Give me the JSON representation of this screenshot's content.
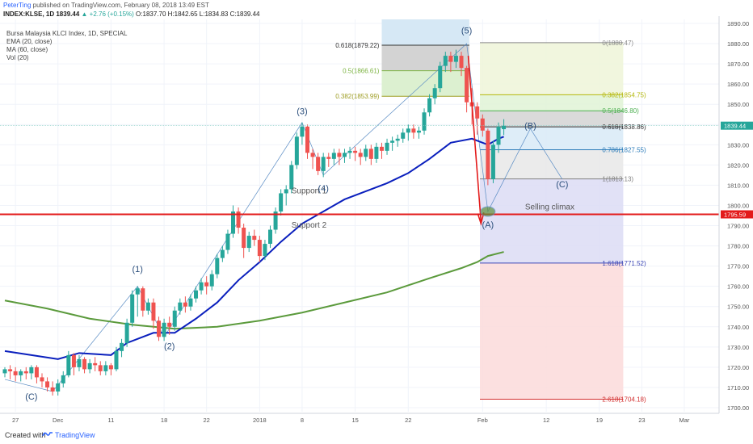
{
  "header": {
    "author": "PeterTing",
    "published": "published on TradingView.com, February 08, 2018 13:49 EST",
    "symbol": "INDEX:KLSE, 1D",
    "last": "1839.44",
    "change": "▲ +2.76 (+0.15%)",
    "ohlc": "O:1837.70 H:1842.65 L:1834.83 C:1839.44"
  },
  "indicators": [
    "Bursa Malaysia KLCI Index, 1D, SPECIAL",
    "EMA (20, close)",
    "MA (60, close)",
    "Vol (20)"
  ],
  "footer": {
    "created_with": "Created with",
    "brand": "TradingView"
  },
  "colors": {
    "up": "#26a69a",
    "down": "#ef5350",
    "ema": "#0a1fbd",
    "ma": "#5b9a3c",
    "support": "#e31b1b",
    "arrow": "#e31b1b",
    "wave": "#4a7bb7"
  },
  "chart_data": {
    "type": "candlestick",
    "symbol": "INDEX:KLSE",
    "timeframe": "1D",
    "ylim": [
      1698,
      1892
    ],
    "yticks": [
      1700,
      1710,
      1720,
      1730,
      1740,
      1750,
      1760,
      1770,
      1780,
      1790,
      1800,
      1810,
      1820,
      1830,
      1840,
      1850,
      1860,
      1870,
      1880,
      1890
    ],
    "xticks": [
      {
        "i": 2,
        "label": "27"
      },
      {
        "i": 10,
        "label": "Dec"
      },
      {
        "i": 20,
        "label": "11"
      },
      {
        "i": 30,
        "label": "18"
      },
      {
        "i": 38,
        "label": "22"
      },
      {
        "i": 48,
        "label": "2018"
      },
      {
        "i": 56,
        "label": "8"
      },
      {
        "i": 66,
        "label": "15"
      },
      {
        "i": 76,
        "label": "22"
      },
      {
        "i": 90,
        "label": "Feb"
      },
      {
        "i": 102,
        "label": "12"
      },
      {
        "i": 112,
        "label": "19"
      },
      {
        "i": 120,
        "label": "23"
      },
      {
        "i": 128,
        "label": "Mar"
      }
    ],
    "candles": [
      [
        0,
        1717,
        1719,
        1715,
        1720
      ],
      [
        1,
        1719,
        1718,
        1714,
        1721
      ],
      [
        2,
        1718,
        1716,
        1713,
        1720
      ],
      [
        3,
        1716,
        1718,
        1713,
        1719
      ],
      [
        4,
        1718,
        1717,
        1714,
        1720
      ],
      [
        5,
        1717,
        1720,
        1714,
        1721
      ],
      [
        6,
        1720,
        1715,
        1712,
        1721
      ],
      [
        7,
        1715,
        1713,
        1710,
        1717
      ],
      [
        8,
        1713,
        1710,
        1708,
        1715
      ],
      [
        9,
        1710,
        1708,
        1706,
        1713
      ],
      [
        10,
        1708,
        1712,
        1706,
        1714
      ],
      [
        11,
        1712,
        1716,
        1710,
        1718
      ],
      [
        12,
        1716,
        1726,
        1715,
        1728
      ],
      [
        13,
        1726,
        1720,
        1716,
        1727
      ],
      [
        14,
        1720,
        1724,
        1718,
        1726
      ],
      [
        15,
        1724,
        1719,
        1717,
        1725
      ],
      [
        16,
        1719,
        1722,
        1717,
        1724
      ],
      [
        17,
        1722,
        1721,
        1718,
        1725
      ],
      [
        18,
        1721,
        1718,
        1716,
        1723
      ],
      [
        19,
        1718,
        1721,
        1716,
        1723
      ],
      [
        20,
        1721,
        1719,
        1716,
        1722
      ],
      [
        21,
        1719,
        1728,
        1718,
        1730
      ],
      [
        22,
        1728,
        1732,
        1725,
        1734
      ],
      [
        23,
        1732,
        1742,
        1730,
        1744
      ],
      [
        24,
        1742,
        1756,
        1740,
        1758
      ],
      [
        25,
        1756,
        1759,
        1745,
        1760
      ],
      [
        26,
        1759,
        1748,
        1745,
        1760
      ],
      [
        27,
        1748,
        1752,
        1746,
        1754
      ],
      [
        28,
        1752,
        1743,
        1739,
        1754
      ],
      [
        29,
        1743,
        1735,
        1733,
        1745
      ],
      [
        30,
        1735,
        1742,
        1733,
        1744
      ],
      [
        31,
        1742,
        1740,
        1736,
        1745
      ],
      [
        32,
        1740,
        1748,
        1738,
        1750
      ],
      [
        33,
        1748,
        1752,
        1746,
        1754
      ],
      [
        34,
        1752,
        1750,
        1747,
        1755
      ],
      [
        35,
        1750,
        1754,
        1748,
        1756
      ],
      [
        36,
        1754,
        1758,
        1752,
        1760
      ],
      [
        37,
        1758,
        1762,
        1756,
        1764
      ],
      [
        38,
        1762,
        1760,
        1756,
        1765
      ],
      [
        39,
        1760,
        1766,
        1758,
        1768
      ],
      [
        40,
        1766,
        1774,
        1764,
        1776
      ],
      [
        41,
        1774,
        1778,
        1772,
        1780
      ],
      [
        42,
        1778,
        1786,
        1776,
        1788
      ],
      [
        43,
        1786,
        1797,
        1784,
        1800
      ],
      [
        44,
        1797,
        1789,
        1786,
        1799
      ],
      [
        45,
        1789,
        1779,
        1774,
        1791
      ],
      [
        46,
        1779,
        1785,
        1777,
        1787
      ],
      [
        47,
        1785,
        1783,
        1780,
        1788
      ],
      [
        48,
        1783,
        1775,
        1772,
        1785
      ],
      [
        49,
        1775,
        1781,
        1773,
        1783
      ],
      [
        50,
        1781,
        1788,
        1779,
        1790
      ],
      [
        51,
        1788,
        1797,
        1786,
        1799
      ],
      [
        52,
        1797,
        1806,
        1795,
        1808
      ],
      [
        53,
        1806,
        1808,
        1800,
        1810
      ],
      [
        54,
        1808,
        1820,
        1806,
        1822
      ],
      [
        55,
        1820,
        1834,
        1818,
        1836
      ],
      [
        56,
        1834,
        1839,
        1830,
        1841
      ],
      [
        57,
        1839,
        1826,
        1823,
        1840
      ],
      [
        58,
        1826,
        1824,
        1818,
        1828
      ],
      [
        59,
        1824,
        1817,
        1815,
        1826
      ],
      [
        60,
        1817,
        1824,
        1814,
        1826
      ],
      [
        61,
        1824,
        1823,
        1819,
        1826
      ],
      [
        62,
        1823,
        1826,
        1820,
        1828
      ],
      [
        63,
        1826,
        1824,
        1820,
        1828
      ],
      [
        64,
        1824,
        1826,
        1821,
        1828
      ],
      [
        65,
        1826,
        1827,
        1823,
        1829
      ],
      [
        66,
        1827,
        1826,
        1822,
        1829
      ],
      [
        67,
        1826,
        1824,
        1820,
        1828
      ],
      [
        68,
        1824,
        1828,
        1822,
        1830
      ],
      [
        69,
        1828,
        1823,
        1820,
        1830
      ],
      [
        70,
        1823,
        1829,
        1821,
        1831
      ],
      [
        71,
        1829,
        1827,
        1823,
        1831
      ],
      [
        72,
        1827,
        1831,
        1825,
        1833
      ],
      [
        73,
        1831,
        1832,
        1827,
        1834
      ],
      [
        74,
        1832,
        1833,
        1829,
        1835
      ],
      [
        75,
        1833,
        1836,
        1831,
        1838
      ],
      [
        76,
        1836,
        1838,
        1832,
        1840
      ],
      [
        77,
        1838,
        1836,
        1833,
        1840
      ],
      [
        78,
        1836,
        1837,
        1833,
        1839
      ],
      [
        79,
        1837,
        1846,
        1835,
        1848
      ],
      [
        80,
        1846,
        1853,
        1844,
        1855
      ],
      [
        81,
        1853,
        1858,
        1850,
        1860
      ],
      [
        82,
        1858,
        1869,
        1856,
        1871
      ],
      [
        83,
        1869,
        1874,
        1866,
        1876
      ],
      [
        84,
        1874,
        1871,
        1866,
        1876
      ],
      [
        85,
        1871,
        1874,
        1868,
        1877
      ],
      [
        86,
        1874,
        1868,
        1864,
        1876
      ],
      [
        87,
        1868,
        1851,
        1846,
        1869
      ],
      [
        88,
        1851,
        1849,
        1840,
        1858
      ],
      [
        89,
        1849,
        1843,
        1835,
        1851
      ],
      [
        90,
        1843,
        1837,
        1834,
        1845
      ],
      [
        91,
        1837,
        1813,
        1810,
        1838
      ],
      [
        92,
        1813,
        1830,
        1811,
        1832
      ],
      [
        93,
        1830,
        1839,
        1826,
        1841
      ],
      [
        94,
        1837.7,
        1839.44,
        1834.83,
        1842.65
      ]
    ],
    "ema20": [
      [
        0,
        1728
      ],
      [
        10,
        1724
      ],
      [
        14,
        1727
      ],
      [
        20,
        1726
      ],
      [
        23,
        1732
      ],
      [
        28,
        1737
      ],
      [
        32,
        1737
      ],
      [
        36,
        1744
      ],
      [
        40,
        1752
      ],
      [
        44,
        1763
      ],
      [
        48,
        1772
      ],
      [
        52,
        1782
      ],
      [
        56,
        1791
      ],
      [
        60,
        1797
      ],
      [
        64,
        1803
      ],
      [
        68,
        1807
      ],
      [
        72,
        1811
      ],
      [
        76,
        1816
      ],
      [
        80,
        1823
      ],
      [
        84,
        1831
      ],
      [
        88,
        1833
      ],
      [
        89,
        1832
      ],
      [
        91,
        1830
      ],
      [
        93,
        1833
      ],
      [
        94,
        1834
      ]
    ],
    "ma60": [
      [
        0,
        1753
      ],
      [
        8,
        1749
      ],
      [
        16,
        1744
      ],
      [
        24,
        1741
      ],
      [
        32,
        1739
      ],
      [
        40,
        1740
      ],
      [
        48,
        1743
      ],
      [
        56,
        1747
      ],
      [
        64,
        1752
      ],
      [
        72,
        1757
      ],
      [
        80,
        1764
      ],
      [
        86,
        1769
      ],
      [
        89,
        1772
      ],
      [
        91,
        1775
      ],
      [
        94,
        1777
      ]
    ],
    "fib_retracement": [
      {
        "label": "0(1880.47)",
        "value": 1880.47,
        "color": "#8a8a8a"
      },
      {
        "label": "0.382(1854.75)",
        "value": 1854.75,
        "color": "#b5b80c"
      },
      {
        "label": "0.5(1846.80)",
        "value": 1846.8,
        "color": "#4caf50"
      },
      {
        "label": "0.618(1838.86)",
        "value": 1838.86,
        "color": "#333333"
      },
      {
        "label": "0.786(1827.55)",
        "value": 1827.55,
        "color": "#2b7bb9"
      },
      {
        "label": "1(1813.13)",
        "value": 1813.13,
        "color": "#808080"
      },
      {
        "label": "1.618(1771.52)",
        "value": 1771.52,
        "color": "#3b46b5"
      },
      {
        "label": "2.618(1704.18)",
        "value": 1704.18,
        "color": "#d32f2f"
      }
    ],
    "fib_left": [
      {
        "label": "0.618(1879.22)",
        "value": 1879.22,
        "color": "#333333"
      },
      {
        "label": "0.5(1866.61)",
        "value": 1866.61,
        "color": "#7cb342"
      },
      {
        "label": "0.382(1853.99)",
        "value": 1853.99,
        "color": "#9e9d24"
      }
    ],
    "support_level": {
      "value": 1795.59,
      "label": "1795.59"
    },
    "last_price": {
      "value": 1839.44,
      "label": "1839.44"
    },
    "waves": [
      {
        "label": "(C)",
        "i": 5,
        "y": 1704
      },
      {
        "label": "(1)",
        "i": 25,
        "y": 1767
      },
      {
        "label": "(2)",
        "i": 31,
        "y": 1729
      },
      {
        "label": "(3)",
        "i": 56,
        "y": 1845
      },
      {
        "label": "(4)",
        "i": 60,
        "y": 1807
      },
      {
        "label": "(5)",
        "i": 87,
        "y": 1885
      },
      {
        "label": "(A)",
        "i": 91,
        "y": 1789
      },
      {
        "label": "(B)",
        "i": 99,
        "y": 1838
      },
      {
        "label": "(C)",
        "i": 105,
        "y": 1809
      }
    ],
    "annotations": [
      "Support 1",
      "Support 2",
      "Selling climax"
    ]
  }
}
